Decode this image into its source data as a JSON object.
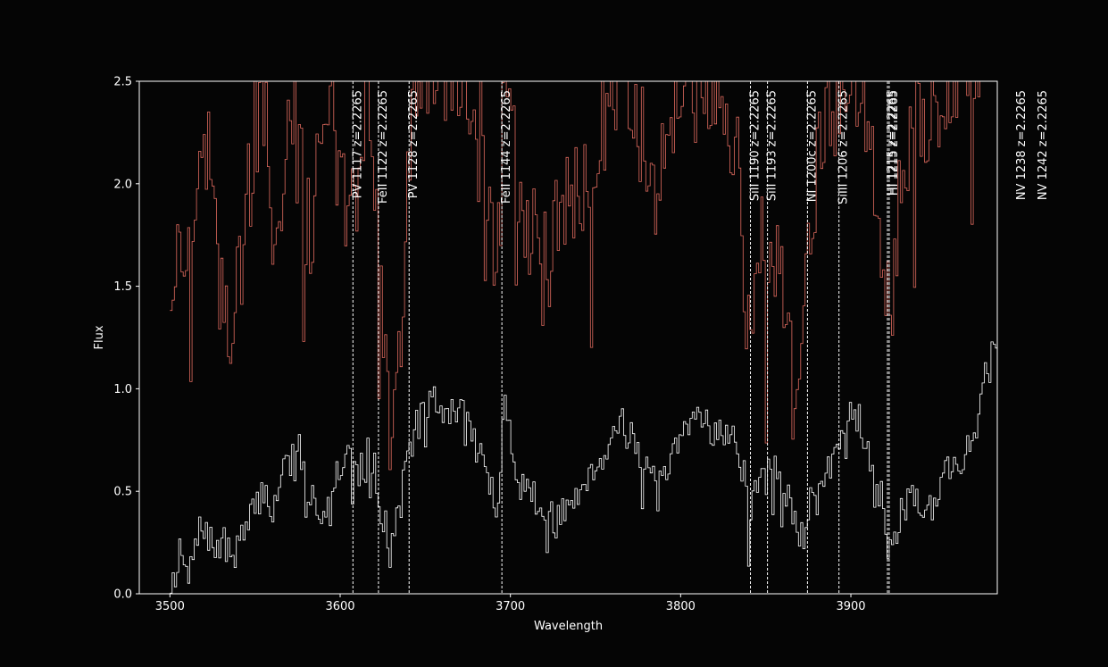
{
  "chart_data": {
    "type": "line",
    "title": "",
    "xlabel": "Wavelength",
    "ylabel": "Flux",
    "xlim": [
      3482,
      3986
    ],
    "ylim": [
      0.0,
      2.5
    ],
    "xticks": [
      3500,
      3600,
      3700,
      3800,
      3900
    ],
    "yticks": [
      0.0,
      0.5,
      1.0,
      1.5,
      2.0,
      2.5
    ],
    "x_tick_labels": [
      "3500",
      "3600",
      "3700",
      "3800",
      "3900"
    ],
    "y_tick_labels": [
      "0.0",
      "0.5",
      "1.0",
      "1.5",
      "2.0",
      "2.5"
    ],
    "grid": false,
    "background": "#050505",
    "series": [
      {
        "style": "steps",
        "color": "#ffffff",
        "x_start": 3500,
        "x_step": 1.3,
        "anchors": [
          [
            3500,
            0.05
          ],
          [
            3506,
            0.2
          ],
          [
            3510,
            0.05
          ],
          [
            3515,
            0.25
          ],
          [
            3520,
            0.35
          ],
          [
            3525,
            0.2
          ],
          [
            3530,
            0.25
          ],
          [
            3535,
            0.18
          ],
          [
            3540,
            0.25
          ],
          [
            3545,
            0.3
          ],
          [
            3550,
            0.45
          ],
          [
            3555,
            0.5
          ],
          [
            3560,
            0.4
          ],
          [
            3565,
            0.6
          ],
          [
            3570,
            0.65
          ],
          [
            3575,
            0.72
          ],
          [
            3580,
            0.5
          ],
          [
            3585,
            0.45
          ],
          [
            3590,
            0.4
          ],
          [
            3595,
            0.55
          ],
          [
            3600,
            0.65
          ],
          [
            3605,
            0.75
          ],
          [
            3610,
            0.55
          ],
          [
            3615,
            0.7
          ],
          [
            3620,
            0.6
          ],
          [
            3625,
            0.35
          ],
          [
            3630,
            0.25
          ],
          [
            3635,
            0.45
          ],
          [
            3640,
            0.7
          ],
          [
            3645,
            0.85
          ],
          [
            3650,
            0.9
          ],
          [
            3655,
            0.95
          ],
          [
            3660,
            0.85
          ],
          [
            3665,
            0.9
          ],
          [
            3670,
            0.92
          ],
          [
            3675,
            0.8
          ],
          [
            3680,
            0.72
          ],
          [
            3685,
            0.6
          ],
          [
            3690,
            0.45
          ],
          [
            3693,
            0.4
          ],
          [
            3696,
            0.95
          ],
          [
            3700,
            0.75
          ],
          [
            3705,
            0.55
          ],
          [
            3710,
            0.5
          ],
          [
            3715,
            0.45
          ],
          [
            3720,
            0.4
          ],
          [
            3725,
            0.35
          ],
          [
            3730,
            0.38
          ],
          [
            3735,
            0.45
          ],
          [
            3740,
            0.5
          ],
          [
            3745,
            0.6
          ],
          [
            3750,
            0.62
          ],
          [
            3755,
            0.7
          ],
          [
            3760,
            0.78
          ],
          [
            3765,
            0.85
          ],
          [
            3770,
            0.8
          ],
          [
            3775,
            0.7
          ],
          [
            3780,
            0.6
          ],
          [
            3785,
            0.5
          ],
          [
            3790,
            0.55
          ],
          [
            3795,
            0.65
          ],
          [
            3800,
            0.75
          ],
          [
            3805,
            0.82
          ],
          [
            3810,
            0.9
          ],
          [
            3815,
            0.85
          ],
          [
            3820,
            0.78
          ],
          [
            3825,
            0.8
          ],
          [
            3830,
            0.75
          ],
          [
            3835,
            0.65
          ],
          [
            3840,
            0.4
          ],
          [
            3845,
            0.6
          ],
          [
            3850,
            0.55
          ],
          [
            3855,
            0.65
          ],
          [
            3860,
            0.55
          ],
          [
            3865,
            0.35
          ],
          [
            3870,
            0.3
          ],
          [
            3875,
            0.45
          ],
          [
            3880,
            0.5
          ],
          [
            3885,
            0.55
          ],
          [
            3890,
            0.7
          ],
          [
            3895,
            0.85
          ],
          [
            3900,
            0.92
          ],
          [
            3905,
            0.85
          ],
          [
            3910,
            0.7
          ],
          [
            3915,
            0.55
          ],
          [
            3920,
            0.35
          ],
          [
            3922,
            0.15
          ],
          [
            3925,
            0.3
          ],
          [
            3930,
            0.4
          ],
          [
            3935,
            0.5
          ],
          [
            3940,
            0.45
          ],
          [
            3945,
            0.4
          ],
          [
            3950,
            0.5
          ],
          [
            3955,
            0.6
          ],
          [
            3960,
            0.65
          ],
          [
            3965,
            0.62
          ],
          [
            3970,
            0.75
          ],
          [
            3975,
            0.9
          ],
          [
            3980,
            1.15
          ],
          [
            3986,
            1.25
          ]
        ],
        "noise": 0.09
      },
      {
        "style": "steps",
        "color": "#e06a5e",
        "x_start": 3500,
        "x_step": 1.3,
        "anchors": [
          [
            3500,
            1.5
          ],
          [
            3505,
            1.65
          ],
          [
            3510,
            1.55
          ],
          [
            3515,
            2.1
          ],
          [
            3520,
            2.3
          ],
          [
            3525,
            1.8
          ],
          [
            3530,
            1.45
          ],
          [
            3535,
            1.2
          ],
          [
            3540,
            1.5
          ],
          [
            3545,
            1.9
          ],
          [
            3550,
            2.3
          ],
          [
            3555,
            2.4
          ],
          [
            3560,
            1.7
          ],
          [
            3565,
            1.9
          ],
          [
            3570,
            2.3
          ],
          [
            3575,
            2.45
          ],
          [
            3580,
            1.75
          ],
          [
            3585,
            1.95
          ],
          [
            3590,
            2.4
          ],
          [
            3595,
            2.35
          ],
          [
            3600,
            2.0
          ],
          [
            3605,
            1.75
          ],
          [
            3610,
            1.9
          ],
          [
            3615,
            2.45
          ],
          [
            3620,
            1.9
          ],
          [
            3625,
            1.1
          ],
          [
            3630,
            0.8
          ],
          [
            3635,
            1.35
          ],
          [
            3640,
            2.1
          ],
          [
            3645,
            2.5
          ],
          [
            3650,
            2.55
          ],
          [
            3655,
            2.6
          ],
          [
            3660,
            2.45
          ],
          [
            3665,
            2.55
          ],
          [
            3670,
            2.6
          ],
          [
            3675,
            2.4
          ],
          [
            3680,
            2.5
          ],
          [
            3685,
            2.1
          ],
          [
            3690,
            1.45
          ],
          [
            3693,
            1.7
          ],
          [
            3696,
            2.5
          ],
          [
            3700,
            2.2
          ],
          [
            3705,
            2.0
          ],
          [
            3710,
            1.85
          ],
          [
            3715,
            1.7
          ],
          [
            3720,
            1.6
          ],
          [
            3725,
            1.75
          ],
          [
            3730,
            1.9
          ],
          [
            3735,
            2.0
          ],
          [
            3740,
            1.95
          ],
          [
            3745,
            1.9
          ],
          [
            3750,
            2.1
          ],
          [
            3755,
            2.3
          ],
          [
            3760,
            2.5
          ],
          [
            3765,
            2.6
          ],
          [
            3770,
            2.5
          ],
          [
            3775,
            2.3
          ],
          [
            3780,
            2.2
          ],
          [
            3785,
            2.0
          ],
          [
            3790,
            2.15
          ],
          [
            3795,
            2.35
          ],
          [
            3800,
            2.5
          ],
          [
            3805,
            2.55
          ],
          [
            3810,
            2.6
          ],
          [
            3815,
            2.55
          ],
          [
            3820,
            2.5
          ],
          [
            3825,
            2.4
          ],
          [
            3830,
            2.3
          ],
          [
            3835,
            1.9
          ],
          [
            3840,
            1.1
          ],
          [
            3845,
            1.8
          ],
          [
            3850,
            1.5
          ],
          [
            3855,
            1.7
          ],
          [
            3860,
            1.4
          ],
          [
            3865,
            1.0
          ],
          [
            3870,
            1.3
          ],
          [
            3875,
            1.7
          ],
          [
            3880,
            2.1
          ],
          [
            3885,
            2.3
          ],
          [
            3890,
            2.4
          ],
          [
            3895,
            2.6
          ],
          [
            3900,
            2.6
          ],
          [
            3905,
            2.5
          ],
          [
            3910,
            2.3
          ],
          [
            3915,
            2.1
          ],
          [
            3920,
            1.6
          ],
          [
            3922,
            1.3
          ],
          [
            3925,
            1.7
          ],
          [
            3930,
            2.0
          ],
          [
            3935,
            2.2
          ],
          [
            3940,
            2.4
          ],
          [
            3945,
            2.3
          ],
          [
            3950,
            2.35
          ],
          [
            3955,
            2.45
          ],
          [
            3960,
            2.5
          ],
          [
            3965,
            2.55
          ],
          [
            3970,
            2.6
          ],
          [
            3975,
            2.7
          ],
          [
            3980,
            2.9
          ],
          [
            3986,
            3.0
          ]
        ],
        "noise": 0.28
      }
    ],
    "line_markers": [
      {
        "x": 3607.5,
        "label": "PV 1117  z=2.2265"
      },
      {
        "x": 3622.5,
        "label": "FeII 1122  z=2.2265"
      },
      {
        "x": 3640.5,
        "label": "PV 1128  z=2.2265"
      },
      {
        "x": 3695.0,
        "label": "FeII 1144  z=2.2265"
      },
      {
        "x": 3841.0,
        "label": "SiII 1190  z=2.2265"
      },
      {
        "x": 3851.0,
        "label": "SiII 1193  z=2.2265"
      },
      {
        "x": 3874.5,
        "label": "NI 1200c  z=2.2265"
      },
      {
        "x": 3893.0,
        "label": "SiIII 1206  z=2.2265"
      },
      {
        "x": 3921.5,
        "label": "HI 1215  z=2.2265"
      },
      {
        "x": 3922.5,
        "label": "HI 1215  z=2.2265"
      }
    ],
    "offscale_labels": [
      {
        "label": "NV 1238  z=2.2265"
      },
      {
        "label": "NV 1242  z=2.2265"
      }
    ]
  }
}
